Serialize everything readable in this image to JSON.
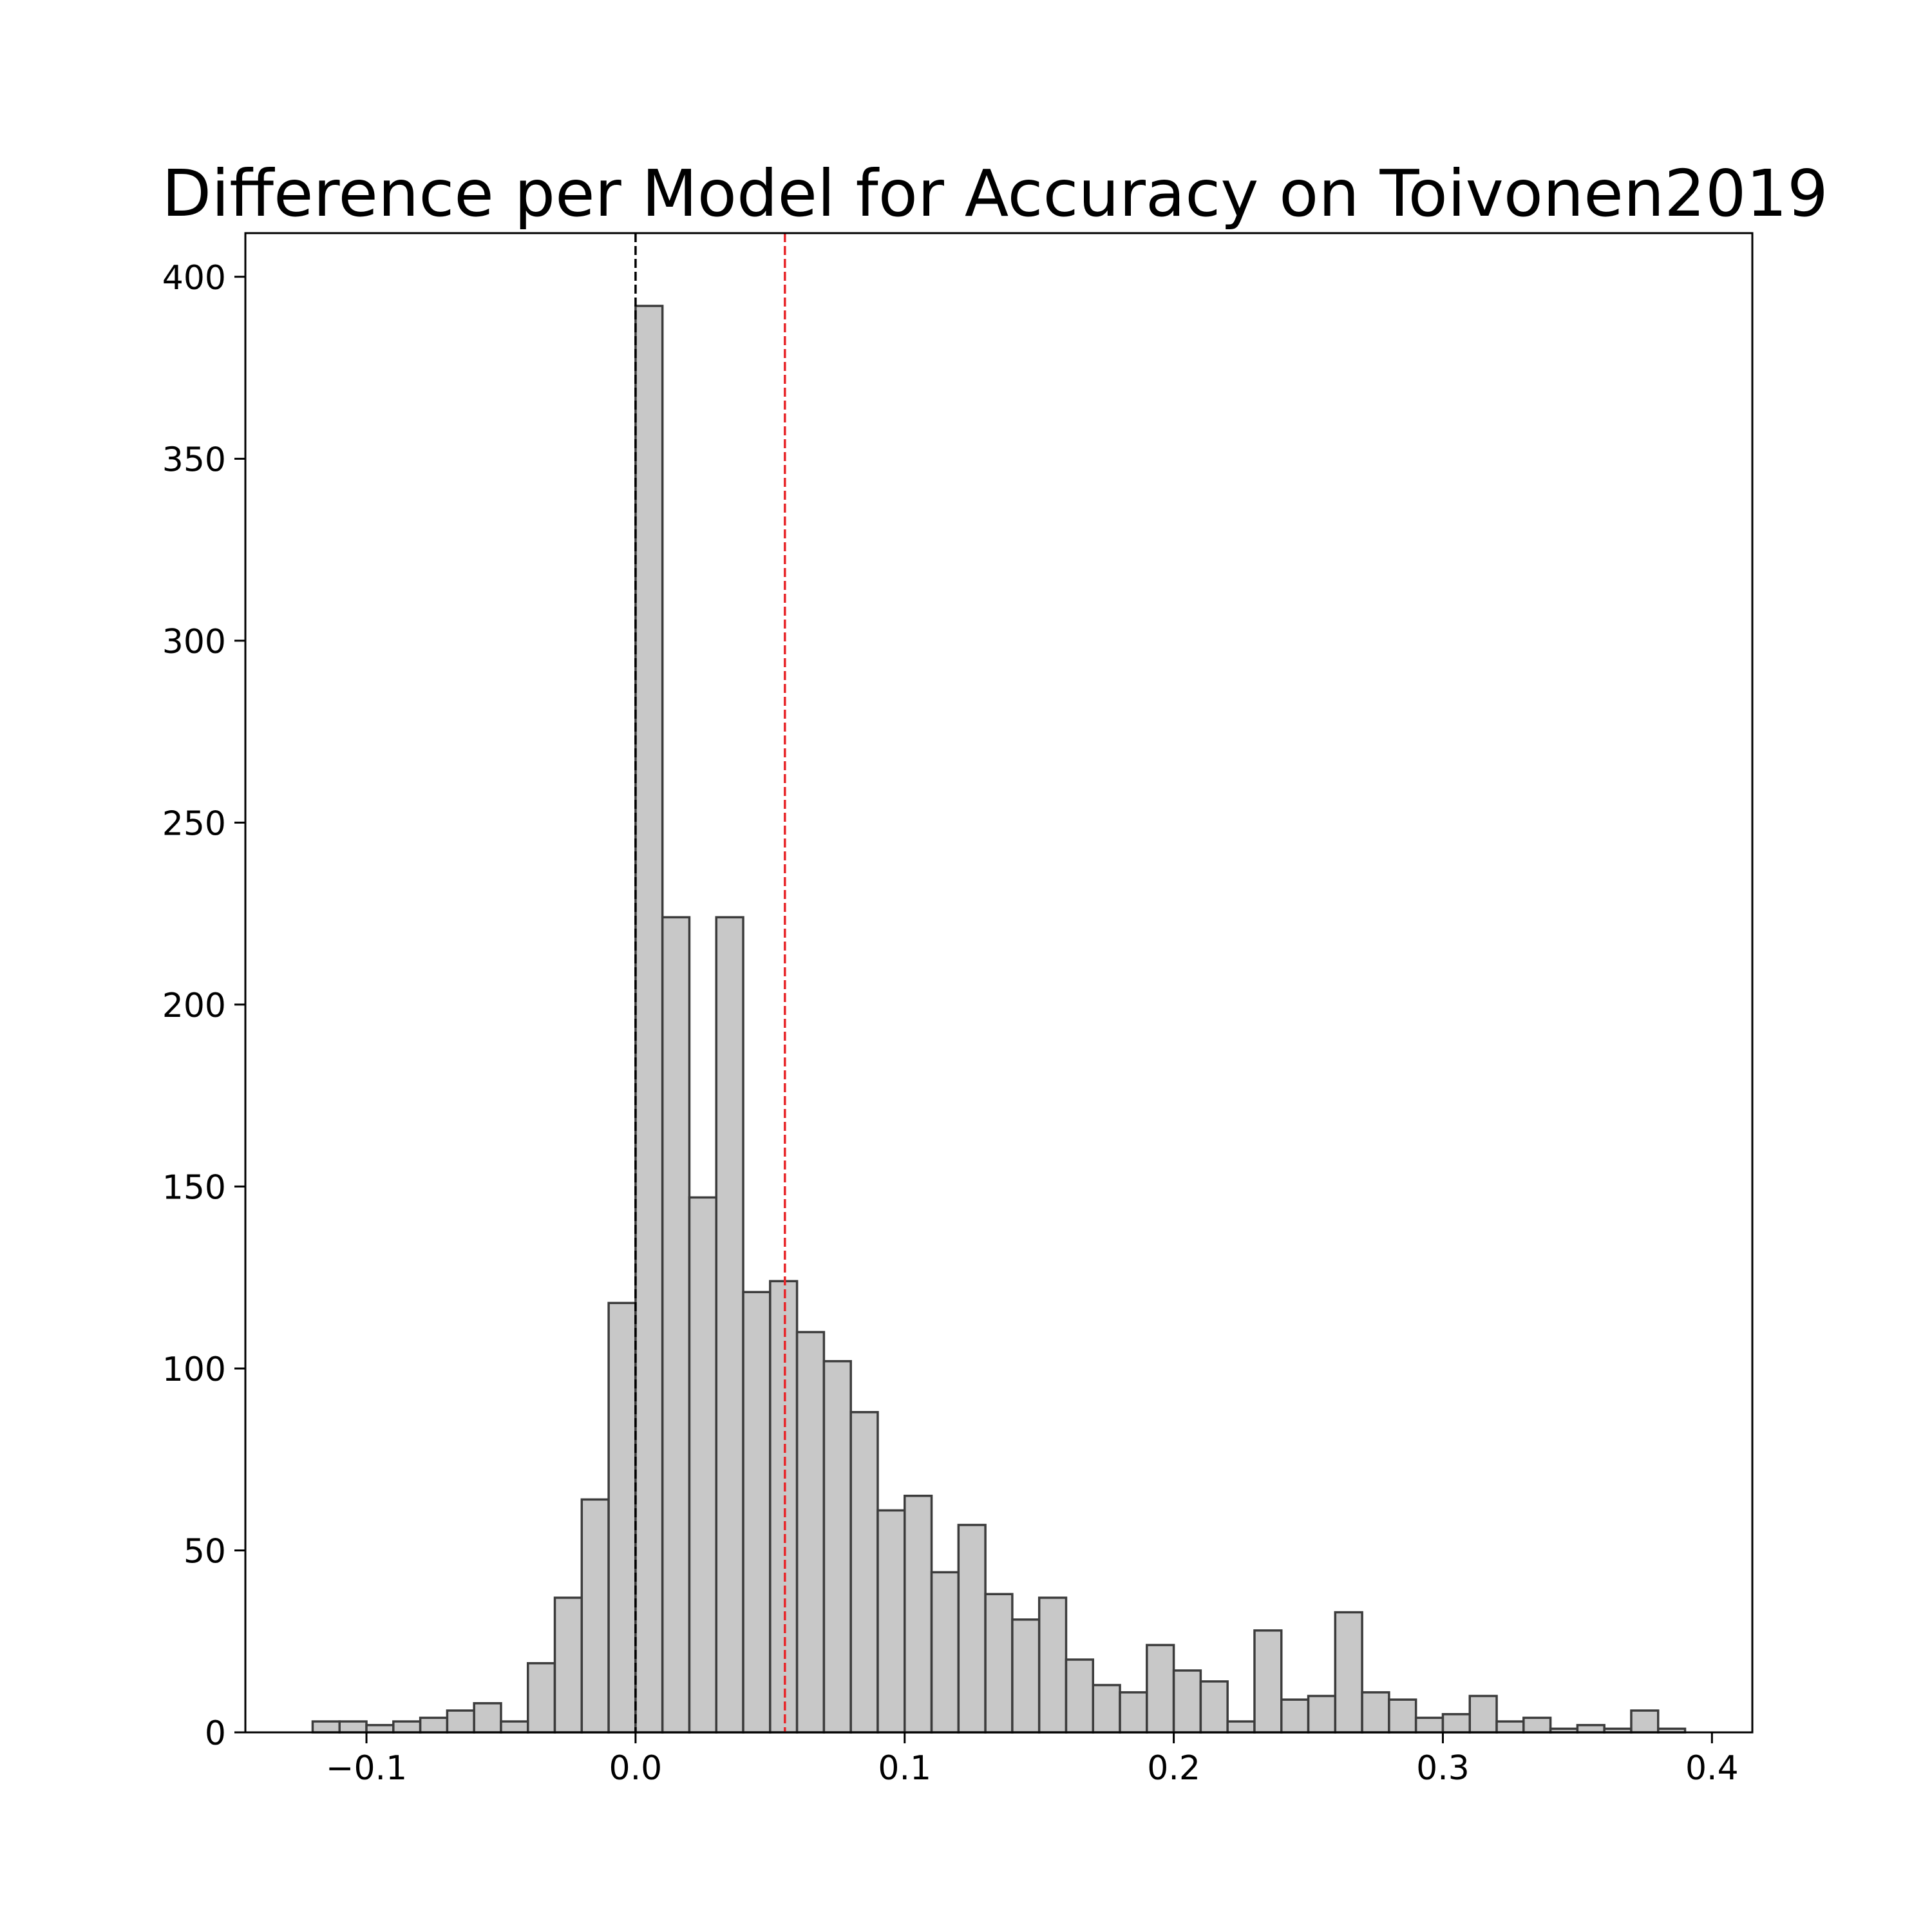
{
  "chart_data": {
    "type": "bar",
    "title": "Difference per Model for Accuracy on Toivonen2019",
    "xlabel": "",
    "ylabel": "",
    "xlim": [
      -0.145,
      0.415
    ],
    "ylim": [
      0,
      412
    ],
    "x_ticks": [
      {
        "value": -0.1,
        "label": "−0.1"
      },
      {
        "value": 0.0,
        "label": "0.0"
      },
      {
        "value": 0.1,
        "label": "0.1"
      },
      {
        "value": 0.2,
        "label": "0.2"
      },
      {
        "value": 0.3,
        "label": "0.3"
      },
      {
        "value": 0.4,
        "label": "0.4"
      }
    ],
    "y_ticks": [
      {
        "value": 0,
        "label": "0"
      },
      {
        "value": 50,
        "label": "50"
      },
      {
        "value": 100,
        "label": "100"
      },
      {
        "value": 150,
        "label": "150"
      },
      {
        "value": 200,
        "label": "200"
      },
      {
        "value": 250,
        "label": "250"
      },
      {
        "value": 300,
        "label": "300"
      },
      {
        "value": 350,
        "label": "350"
      },
      {
        "value": 400,
        "label": "400"
      }
    ],
    "bin_edges": [
      -0.12,
      -0.11,
      -0.1,
      -0.09,
      -0.08,
      -0.07,
      -0.06,
      -0.05,
      -0.04,
      -0.03,
      -0.02,
      -0.01,
      0.0,
      0.01,
      0.02,
      0.03,
      0.04,
      0.05,
      0.06,
      0.07,
      0.08,
      0.09,
      0.1,
      0.11,
      0.12,
      0.13,
      0.14,
      0.15,
      0.16,
      0.17,
      0.18,
      0.19,
      0.2,
      0.21,
      0.22,
      0.23,
      0.24,
      0.25,
      0.26,
      0.27,
      0.28,
      0.29,
      0.3,
      0.31,
      0.32,
      0.33,
      0.34,
      0.35,
      0.36,
      0.37,
      0.38,
      0.39
    ],
    "counts": [
      3,
      3,
      2,
      3,
      4,
      6,
      8,
      3,
      19,
      37,
      64,
      118,
      392,
      224,
      147,
      224,
      121,
      124,
      110,
      102,
      88,
      61,
      65,
      44,
      57,
      38,
      31,
      37,
      20,
      13,
      11,
      24,
      17,
      14,
      3,
      28,
      9,
      10,
      33,
      11,
      9,
      4,
      5,
      10,
      3,
      4,
      1,
      2,
      1,
      6,
      1
    ],
    "reference_lines": [
      {
        "x": 0.0,
        "color": "#000000",
        "style": "dashed"
      },
      {
        "x": 0.0555,
        "color": "#e8262a",
        "style": "dashed"
      }
    ],
    "bar_fill": "#c8c8c8",
    "bar_edge": "#3c3c3c",
    "grid": false,
    "legend": "none"
  }
}
